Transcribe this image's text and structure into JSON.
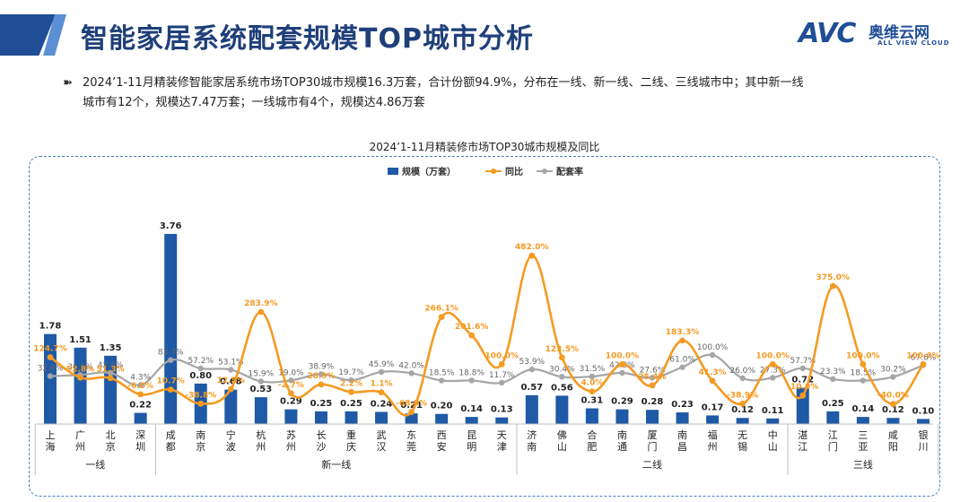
{
  "header": {
    "title": "智能家居系统配套规模TOP城市分析",
    "logo_mark": "AVC",
    "logo_cn": "奥维云网",
    "logo_en": "ALL VIEW CLOUD"
  },
  "description": {
    "bullet": "➽",
    "line1": "2024’1-11月精装修智能家居系统市场TOP30城市规模16.3万套，合计份额94.9%，分布在一线、新一线、二线、三线城市中；其中新一线",
    "line2": "城市有12个，规模达7.47万套；一线城市有4个，规模达4.86万套"
  },
  "colors": {
    "bar": "#1f5aa6",
    "yoy": "#f59a23",
    "rate": "#a6a6a6",
    "frame": "#4a7ec2"
  },
  "chart_data": {
    "type": "bar",
    "title": "2024’1-11月精装修市场TOP30城市规模及同比",
    "categories": [
      "上海",
      "广州",
      "北京",
      "深圳",
      "成都",
      "南京",
      "宁波",
      "杭州",
      "苏州",
      "长沙",
      "重庆",
      "武汉",
      "东莞",
      "西安",
      "昆明",
      "天津",
      "济南",
      "佛山",
      "合肥",
      "南通",
      "厦门",
      "南昌",
      "福州",
      "无锡",
      "中山",
      "湛江",
      "江门",
      "三亚",
      "咸阳",
      "银川"
    ],
    "groups": [
      {
        "name": "一线",
        "start": 0,
        "end": 3
      },
      {
        "name": "新一线",
        "start": 4,
        "end": 15
      },
      {
        "name": "二线",
        "start": 16,
        "end": 24
      },
      {
        "name": "三线",
        "start": 25,
        "end": 29
      }
    ],
    "legend": [
      "规模（万套）",
      "同比",
      "配套率"
    ],
    "legend_position": "top-center",
    "series": [
      {
        "name": "规模（万套）",
        "type": "bar",
        "values": [
          1.78,
          1.51,
          1.35,
          0.22,
          3.76,
          0.8,
          0.68,
          0.53,
          0.29,
          0.25,
          0.25,
          0.24,
          0.21,
          0.2,
          0.14,
          0.13,
          0.57,
          0.56,
          0.31,
          0.29,
          0.28,
          0.23,
          0.17,
          0.12,
          0.11,
          0.72,
          0.25,
          0.14,
          0.12,
          0.1
        ],
        "labels": [
          "1.78",
          "1.51",
          "1.35",
          "0.22",
          "3.76",
          "0.80",
          "0.68",
          "0.53",
          "0.29",
          "0.25",
          "0.25",
          "0.24",
          "0.21",
          "0.20",
          "0.14",
          "0.13",
          "0.57",
          "0.56",
          "0.31",
          "0.29",
          "0.28",
          "0.23",
          "0.17",
          "0.12",
          "0.11",
          "0.72",
          "0.25",
          "0.14",
          "0.12",
          "0.10"
        ]
      },
      {
        "name": "同比",
        "type": "line",
        "values": [
          124.7,
          52.8,
          51.3,
          -6.0,
          10.7,
          -38.8,
          12.5,
          283.9,
          -2.7,
          28.9,
          2.2,
          1.1,
          -68.0,
          266.1,
          201.6,
          100.0,
          482.0,
          123.5,
          4.0,
          100.0,
          25.4,
          183.3,
          41.3,
          -38.9,
          100.0,
          -10.0,
          375.0,
          100.0,
          -40.0,
          100.0
        ],
        "labels": [
          "124.7%",
          "52.8%",
          "51.3%",
          "-6.0%",
          "10.7%",
          "-38.8%",
          "12.5%",
          "283.9%",
          "-2.7%",
          "28.9%",
          "2.2%",
          "1.1%",
          "-68.0%",
          "266.1%",
          "201.6%",
          "100.0%",
          "482.0%",
          "123.5%",
          "4.0%",
          "100.0%",
          "25.4%",
          "183.3%",
          "41.3%",
          "-38.9%",
          "100.0%",
          "-10.0%",
          "375.0%",
          "100.0%",
          "-40.0%",
          "100.0%"
        ]
      },
      {
        "name": "配套率",
        "type": "line",
        "values": [
          32.6,
          36.5,
          42.6,
          4.3,
          83.7,
          57.2,
          53.1,
          15.9,
          19.0,
          38.9,
          19.7,
          45.9,
          42.0,
          18.5,
          18.8,
          11.7,
          53.9,
          30.4,
          31.5,
          42.9,
          27.6,
          61.0,
          100.0,
          26.0,
          27.3,
          57.7,
          23.3,
          18.5,
          30.2,
          67.6
        ],
        "labels": [
          "32.6%",
          "36.5%",
          "42.6%",
          "4.3%",
          "83.7%",
          "57.2%",
          "53.1%",
          "15.9%",
          "19.0%",
          "38.9%",
          "19.7%",
          "45.9%",
          "42.0%",
          "18.5%",
          "18.8%",
          "11.7%",
          "53.9%",
          "30.4%",
          "31.5%",
          "42.9%",
          "27.6%",
          "61.0%",
          "100.0%",
          "26.0%",
          "27.3%",
          "57.7%",
          "23.3%",
          "18.5%",
          "30.2%",
          "67.6%"
        ]
      }
    ]
  }
}
